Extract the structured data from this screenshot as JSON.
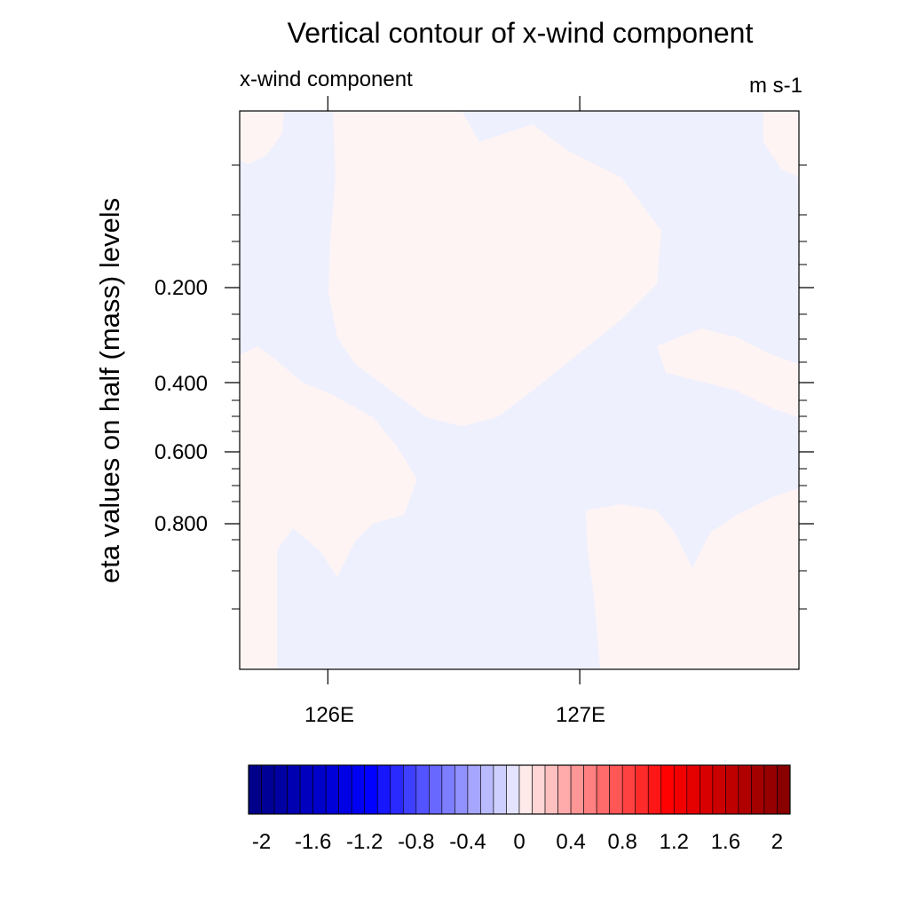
{
  "chart_data": {
    "type": "heatmap",
    "title": "Vertical contour of x-wind component",
    "subtitle_left": "x-wind component",
    "subtitle_right": "m s-1",
    "ylabel": "eta values on half (mass) levels",
    "xlabel": "",
    "x_ticks": [
      "126E",
      "127E"
    ],
    "y_ticks": [
      "0.200",
      "0.400",
      "0.600",
      "0.800"
    ],
    "x_tick_values": [
      126,
      127
    ],
    "y_tick_values": [
      0.2,
      0.4,
      0.6,
      0.8
    ],
    "xlim": [
      125.65,
      127.87
    ],
    "colorbar": {
      "labels": [
        "-2",
        "-1.6",
        "-1.2",
        "-0.8",
        "-0.4",
        "0",
        "0.4",
        "0.8",
        "1.2",
        "1.6",
        "2"
      ],
      "label_values": [
        -2,
        -1.6,
        -1.2,
        -0.8,
        -0.4,
        0,
        0.4,
        0.8,
        1.2,
        1.6,
        2
      ],
      "min": -2.1,
      "max": 2.1,
      "step": 0.1
    },
    "field_summary": {
      "range_approx": [
        -0.1,
        0.1
      ],
      "dominant_colors": [
        "#eef0ff",
        "#fff4f4"
      ]
    },
    "grid": false,
    "legend": "colorbar-bottom"
  }
}
